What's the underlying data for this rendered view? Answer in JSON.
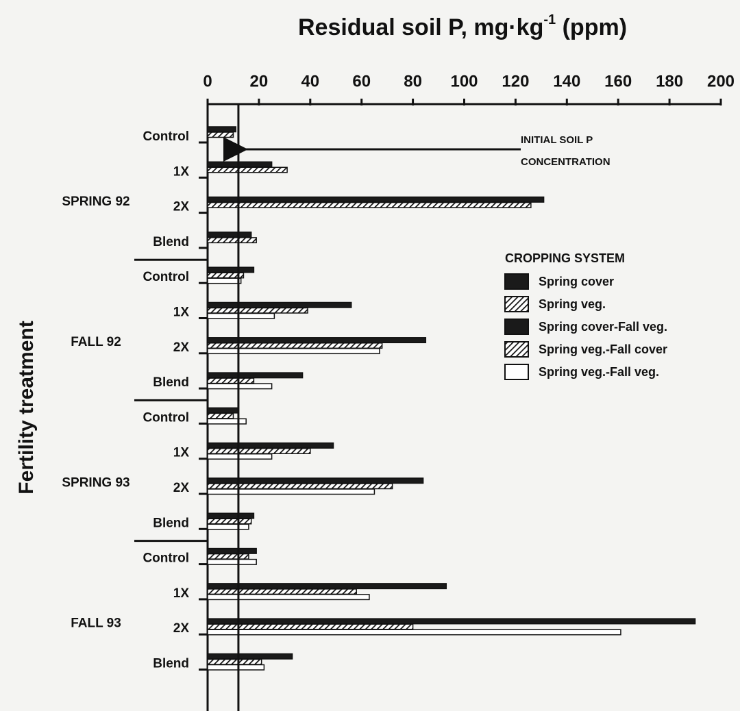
{
  "chart_data": {
    "type": "barh",
    "title": "Residual soil P, mg·kg",
    "title_superscript": "-1",
    "title_end": " (ppm)",
    "ylabel": "Fertility treatment",
    "groups": [
      "SPRING 92",
      "FALL 92",
      "SPRING 93",
      "FALL 93"
    ],
    "categories": [
      "Control",
      "1X",
      "2X",
      "Blend",
      "Control",
      "1X",
      "2X",
      "Blend",
      "Control",
      "1X",
      "2X",
      "Blend",
      "Control",
      "1X",
      "2X",
      "Blend"
    ],
    "legend_title": "CROPPING SYSTEM",
    "series": [
      {
        "name": "Spring cover",
        "color": "#1a1a1a",
        "hatch": false,
        "values": [
          11,
          25,
          131,
          17,
          null,
          null,
          null,
          null,
          null,
          null,
          null,
          null,
          null,
          null,
          null,
          null
        ]
      },
      {
        "name": "Spring veg.",
        "color": "#1a1a1a",
        "hatch": true,
        "values": [
          10,
          31,
          126,
          19,
          null,
          null,
          null,
          null,
          null,
          null,
          null,
          null,
          null,
          null,
          null,
          null
        ]
      },
      {
        "name": "Spring cover-Fall veg.",
        "color": "#1a1a1a",
        "hatch": false,
        "values": [
          null,
          null,
          null,
          null,
          18,
          56,
          85,
          37,
          12,
          49,
          84,
          18,
          19,
          93,
          190,
          33
        ]
      },
      {
        "name": "Spring veg.-Fall cover",
        "color": "#1a1a1a",
        "hatch": true,
        "values": [
          null,
          null,
          null,
          null,
          14,
          39,
          68,
          18,
          10,
          40,
          72,
          17,
          16,
          58,
          80,
          21
        ]
      },
      {
        "name": "Spring veg.-Fall veg.",
        "color": "#ffffff",
        "hatch": false,
        "values": [
          null,
          null,
          null,
          null,
          13,
          26,
          67,
          25,
          15,
          25,
          65,
          16,
          19,
          63,
          161,
          22
        ]
      }
    ],
    "xlim": [
      0,
      200
    ],
    "xticks": [
      0,
      20,
      40,
      60,
      80,
      100,
      120,
      140,
      160,
      180,
      200
    ],
    "reference_line": {
      "value": 12,
      "label": [
        "INITIAL SOIL P",
        "CONCENTRATION"
      ]
    }
  }
}
